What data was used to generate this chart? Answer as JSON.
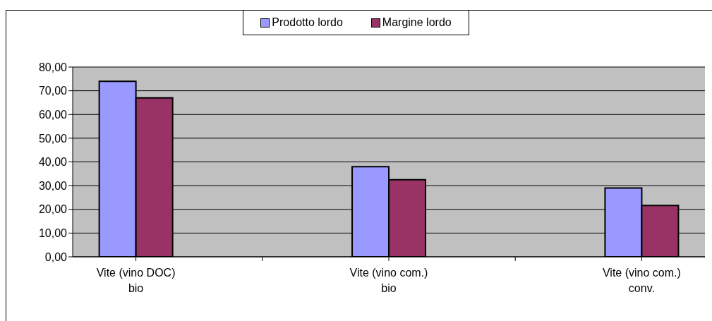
{
  "chart_data": {
    "type": "bar",
    "categories": [
      "Vite (vino DOC)\nbio",
      null,
      "Vite (vino com.)\nbio",
      null,
      "Vite (vino com.)\nconv."
    ],
    "series": [
      {
        "name": "Prodotto lordo",
        "color": "#9999ff",
        "values": [
          74,
          null,
          38,
          null,
          29
        ]
      },
      {
        "name": "Margine lordo",
        "color": "#993366",
        "values": [
          67,
          null,
          32.5,
          null,
          21.6
        ]
      }
    ],
    "ylim": [
      0,
      80
    ],
    "yticks": [
      {
        "value": 0,
        "label": "0,00"
      },
      {
        "value": 10,
        "label": "10,00"
      },
      {
        "value": 20,
        "label": "20,00"
      },
      {
        "value": 30,
        "label": "30,00"
      },
      {
        "value": 40,
        "label": "40,00"
      },
      {
        "value": 50,
        "label": "50,00"
      },
      {
        "value": 60,
        "label": "60,00"
      },
      {
        "value": 70,
        "label": "70,00"
      },
      {
        "value": 80,
        "label": "80,00"
      }
    ],
    "grid": "y",
    "legend": "top"
  }
}
